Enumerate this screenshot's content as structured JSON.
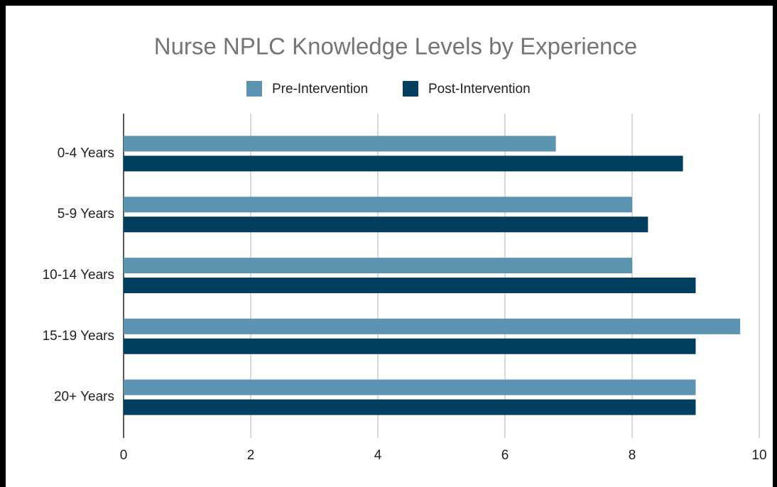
{
  "chart_data": {
    "type": "hbar",
    "title": "Nurse NPLC Knowledge Levels by Experience",
    "categories": [
      "0-4 Years",
      "5-9 Years",
      "10-14 Years",
      "15-19 Years",
      "20+ Years"
    ],
    "series": [
      {
        "name": "Pre-Intervention",
        "color": "#5b93b0",
        "values": [
          6.8,
          8,
          8,
          9.7,
          9
        ]
      },
      {
        "name": "Post-Intervention",
        "color": "#023f5e",
        "values": [
          8.8,
          8.25,
          9,
          9,
          9
        ]
      }
    ],
    "xlim": [
      0,
      10
    ],
    "xticks": [
      0,
      2,
      4,
      6,
      8,
      10
    ],
    "grid": true,
    "legend": "top"
  }
}
